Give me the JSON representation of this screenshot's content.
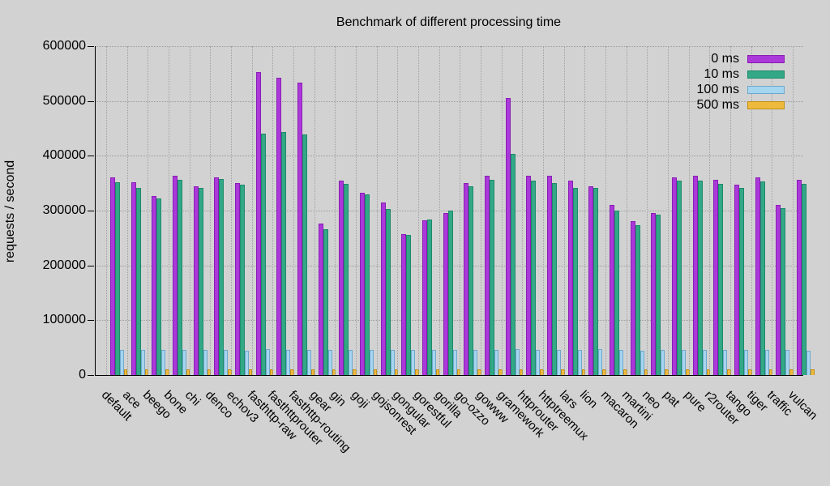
{
  "chart_data": {
    "type": "bar",
    "title": "Benchmark of different processing time",
    "xlabel": "",
    "ylabel": "requests / second",
    "ylim": [
      0,
      600000
    ],
    "yticks": [
      0,
      100000,
      200000,
      300000,
      400000,
      500000,
      600000
    ],
    "grid": "dotted-both-axes",
    "legend_position": "top-right-inside",
    "background_color": "#d2d2d2",
    "categories": [
      "default",
      "ace",
      "beego",
      "bone",
      "chi",
      "denco",
      "echov3",
      "fasthttp-raw",
      "fasthttprouter",
      "fasthttp-routing",
      "gear",
      "gin",
      "goji",
      "gojsonrest",
      "gongular",
      "gorestful",
      "gorilla",
      "go-ozzo",
      "gowww",
      "gramework",
      "httprouter",
      "httptreemux",
      "lars",
      "lion",
      "macaron",
      "martini",
      "neo",
      "pat",
      "pure",
      "r2router",
      "tango",
      "tiger",
      "traffic",
      "vulcan"
    ],
    "series": [
      {
        "name": "0 ms",
        "fill": "#ab39d9",
        "border": "#8a1cb5",
        "values": [
          361000,
          352000,
          326000,
          363000,
          344000,
          361000,
          351000,
          552000,
          543000,
          534000,
          277000,
          355000,
          332000,
          315000,
          257000,
          283000,
          296000,
          351000,
          363000,
          506000,
          363000,
          363000,
          354000,
          345000,
          311000,
          281000,
          295000,
          360000,
          363000,
          356000,
          348000,
          361000,
          310000,
          356000
        ]
      },
      {
        "name": "10 ms",
        "fill": "#33a886",
        "border": "#1d8a6a",
        "values": [
          352000,
          342000,
          322000,
          356000,
          342000,
          357000,
          347000,
          441000,
          444000,
          439000,
          266000,
          349000,
          330000,
          303000,
          256000,
          284000,
          300000,
          345000,
          356000,
          404000,
          354000,
          351000,
          341000,
          342000,
          300000,
          273000,
          293000,
          355000,
          354000,
          349000,
          342000,
          353000,
          304000,
          349000
        ]
      },
      {
        "name": "100 ms",
        "fill": "#a6d5ef",
        "border": "#6fa8cc",
        "values": [
          46000,
          46500,
          46000,
          45500,
          46000,
          46500,
          45000,
          47000,
          46500,
          46500,
          46000,
          46500,
          46000,
          46000,
          46000,
          45500,
          45500,
          46000,
          46500,
          47000,
          46500,
          46000,
          46500,
          47000,
          45500,
          45000,
          46000,
          46000,
          46500,
          46000,
          45500,
          46500,
          45500,
          44000
        ]
      },
      {
        "name": "500 ms",
        "fill": "#eeba3e",
        "border": "#c28f17",
        "values": [
          10000,
          10200,
          10500,
          10000,
          10300,
          10000,
          10200,
          10500,
          10300,
          10400,
          10000,
          10200,
          10000,
          10200,
          9800,
          10000,
          10000,
          10200,
          10300,
          10400,
          10200,
          10000,
          10200,
          10000,
          10000,
          9800,
          10000,
          10200,
          10300,
          10000,
          10200,
          10300,
          10000,
          10000
        ]
      }
    ]
  }
}
